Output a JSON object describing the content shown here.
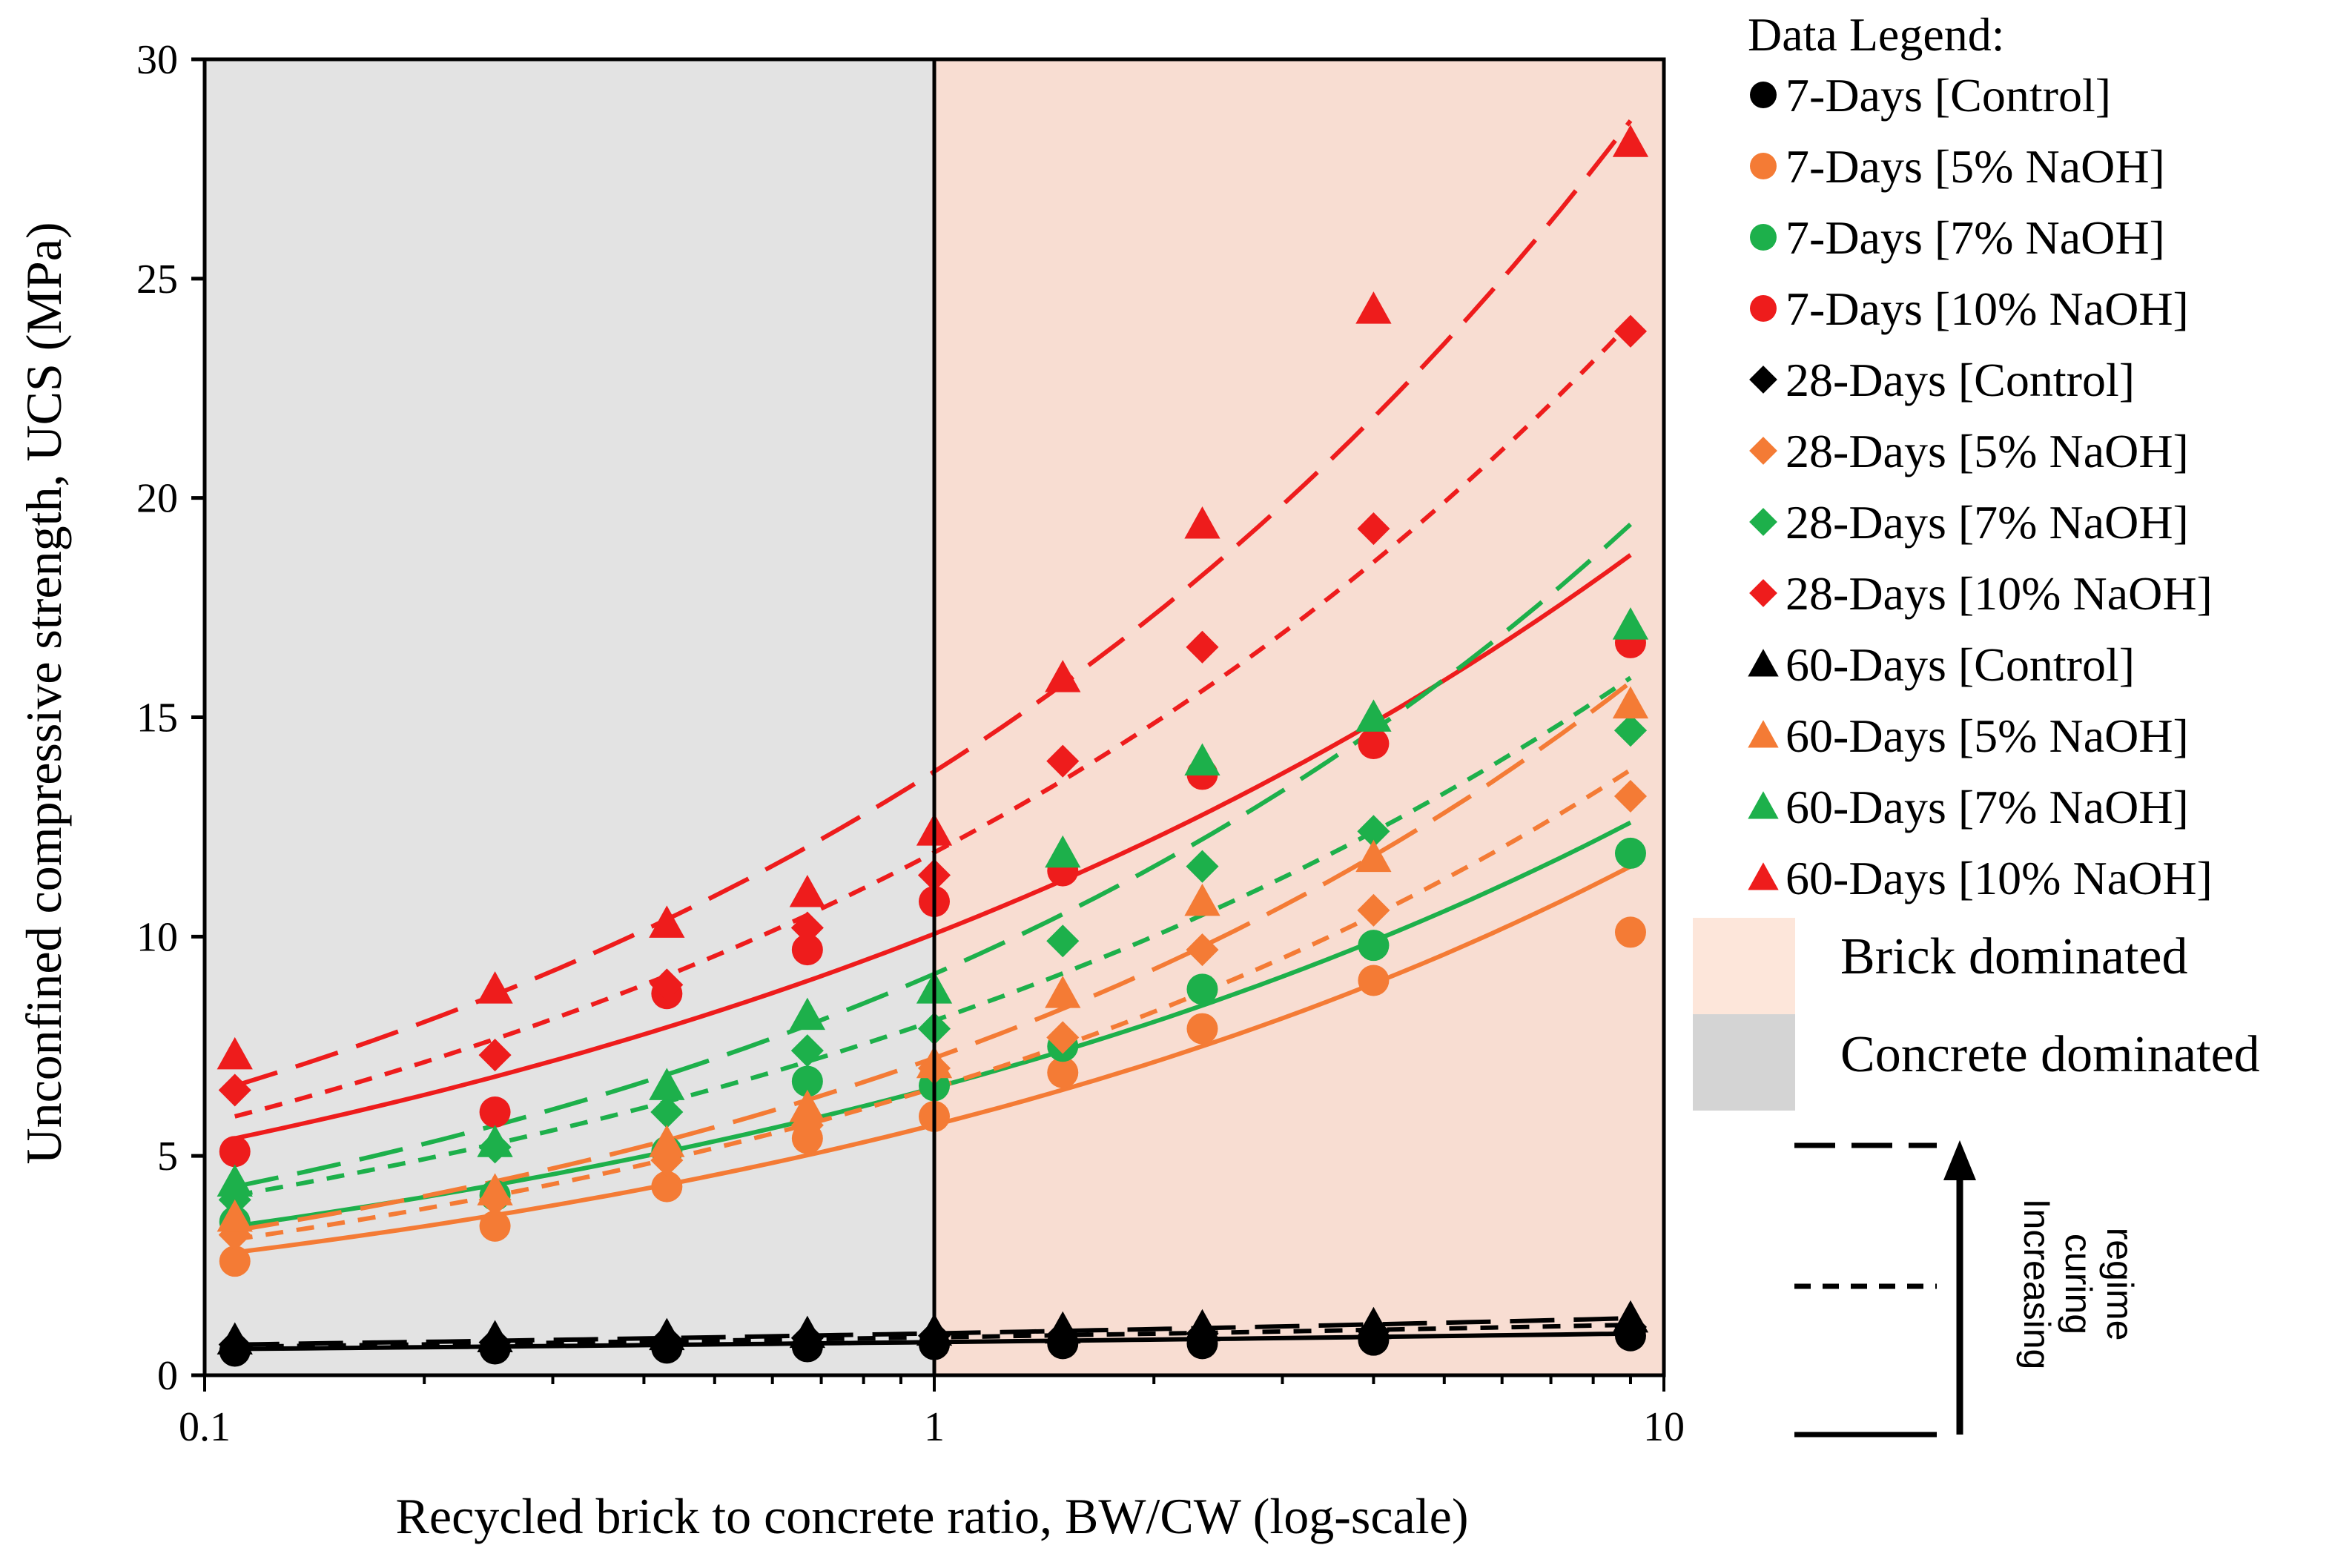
{
  "chart_data": {
    "type": "scatter",
    "xlabel": "Recycled brick to concrete ratio, BW/CW (log-scale)",
    "ylabel": "Unconfined compressive strength, UCS (MPa)",
    "xscale": "log",
    "xlim": [
      0.1,
      10
    ],
    "ylim": [
      0,
      30
    ],
    "xticks": [
      "0.1",
      "1",
      "10"
    ],
    "yticks": [
      "0",
      "5",
      "10",
      "15",
      "20",
      "25",
      "30"
    ],
    "grid": false,
    "legend_title": "Data Legend:",
    "legend_position": "right",
    "x": [
      0.11,
      0.25,
      0.43,
      0.67,
      1.0,
      1.5,
      2.33,
      4.0,
      9.0
    ],
    "regions": [
      {
        "name": "Concrete dominated",
        "x_range": [
          0.1,
          1
        ],
        "color": "#e3e3e3"
      },
      {
        "name": "Brick dominated",
        "x_range": [
          1,
          10
        ],
        "color": "#f8ddd2"
      }
    ],
    "colors": {
      "control": "#000000",
      "naoh5": "#f47b35",
      "naoh7": "#1db04b",
      "naoh10": "#ee1c1c"
    },
    "series": [
      {
        "name": "7-Days [Control]",
        "marker": "circle",
        "color": "#000000",
        "line": "solid",
        "values": [
          0.55,
          0.6,
          0.62,
          0.65,
          0.7,
          0.72,
          0.72,
          0.8,
          0.9
        ],
        "fit": [
          0.6,
          0.95
        ]
      },
      {
        "name": "7-Days [5% NaOH]",
        "marker": "circle",
        "color": "#f47b35",
        "line": "solid",
        "values": [
          2.6,
          3.4,
          4.3,
          5.4,
          5.9,
          6.9,
          7.9,
          9.0,
          10.1
        ],
        "fit": [
          2.8,
          11.6
        ]
      },
      {
        "name": "7-Days [7% NaOH]",
        "marker": "circle",
        "color": "#1db04b",
        "line": "solid",
        "values": [
          3.5,
          4.1,
          5.1,
          6.7,
          6.6,
          7.5,
          8.8,
          9.8,
          11.9
        ],
        "fit": [
          3.4,
          12.6
        ]
      },
      {
        "name": "7-Days [10% NaOH]",
        "marker": "circle",
        "color": "#ee1c1c",
        "line": "solid",
        "values": [
          5.1,
          6.0,
          8.7,
          9.7,
          10.8,
          11.5,
          13.7,
          14.4,
          16.7
        ],
        "fit": [
          5.4,
          18.7
        ]
      },
      {
        "name": "28-Days [Control]",
        "marker": "diamond",
        "color": "#000000",
        "line": "short-dash",
        "values": [
          0.7,
          0.75,
          0.8,
          0.85,
          0.9,
          0.92,
          0.95,
          1.0,
          1.1
        ],
        "fit": [
          0.65,
          1.15
        ]
      },
      {
        "name": "28-Days [5% NaOH]",
        "marker": "diamond",
        "color": "#f47b35",
        "line": "short-dash",
        "values": [
          3.2,
          4.0,
          4.9,
          5.7,
          7.0,
          7.7,
          9.7,
          10.6,
          13.2
        ],
        "fit": [
          3.1,
          13.8
        ]
      },
      {
        "name": "28-Days [7% NaOH]",
        "marker": "diamond",
        "color": "#1db04b",
        "line": "short-dash",
        "values": [
          4.0,
          5.2,
          6.0,
          7.4,
          7.9,
          9.9,
          11.6,
          12.4,
          14.7
        ],
        "fit": [
          4.1,
          15.9
        ]
      },
      {
        "name": "28-Days [10% NaOH]",
        "marker": "diamond",
        "color": "#ee1c1c",
        "line": "short-dash",
        "values": [
          6.5,
          7.3,
          8.9,
          10.2,
          11.4,
          14.0,
          16.6,
          19.3,
          23.8
        ],
        "fit": [
          5.9,
          24.0
        ]
      },
      {
        "name": "60-Days [Control]",
        "marker": "triangle",
        "color": "#000000",
        "line": "long-dash",
        "values": [
          0.8,
          0.85,
          0.9,
          0.95,
          1.0,
          1.05,
          1.1,
          1.15,
          1.3
        ],
        "fit": [
          0.7,
          1.3
        ]
      },
      {
        "name": "60-Days [5% NaOH]",
        "marker": "triangle",
        "color": "#f47b35",
        "line": "long-dash",
        "values": [
          3.6,
          4.2,
          5.3,
          6.1,
          7.1,
          8.7,
          10.8,
          11.8,
          15.3
        ],
        "fit": [
          3.3,
          15.8
        ]
      },
      {
        "name": "60-Days [7% NaOH]",
        "marker": "triangle",
        "color": "#1db04b",
        "line": "long-dash",
        "values": [
          4.4,
          5.3,
          6.6,
          8.2,
          8.8,
          11.9,
          14.0,
          15.0,
          17.1
        ],
        "fit": [
          4.3,
          19.4
        ]
      },
      {
        "name": "60-Days [10% NaOH]",
        "marker": "triangle",
        "color": "#ee1c1c",
        "line": "long-dash",
        "values": [
          7.3,
          8.8,
          10.3,
          11.0,
          12.4,
          15.9,
          19.4,
          24.3,
          28.1
        ],
        "fit": [
          6.6,
          28.6
        ]
      }
    ],
    "curing_note": {
      "label_lines": [
        "Increasing",
        "curing",
        "regime"
      ]
    }
  }
}
